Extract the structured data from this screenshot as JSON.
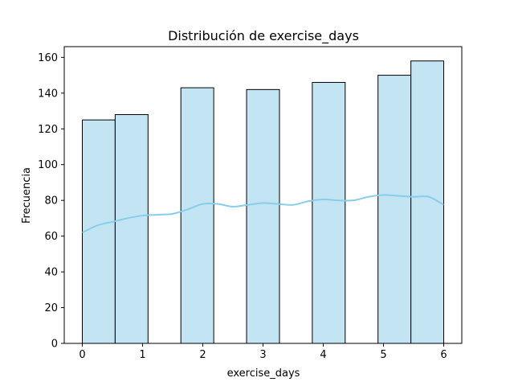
{
  "chart_data": {
    "type": "bar",
    "title": "Distribución de exercise_days",
    "xlabel": "exercise_days",
    "ylabel": "Frecuencia",
    "xlim": [
      -0.3,
      6.3
    ],
    "ylim": [
      0,
      166
    ],
    "xticks": [
      0,
      1,
      2,
      3,
      4,
      5,
      6
    ],
    "yticks": [
      0,
      20,
      40,
      60,
      80,
      100,
      120,
      140,
      160
    ],
    "grid": false,
    "bins": [
      {
        "x0": 0.0,
        "x1": 0.545,
        "value": 125
      },
      {
        "x0": 0.545,
        "x1": 1.091,
        "value": 128
      },
      {
        "x0": 1.091,
        "x1": 1.636,
        "value": 0
      },
      {
        "x0": 1.636,
        "x1": 2.182,
        "value": 143
      },
      {
        "x0": 2.182,
        "x1": 2.727,
        "value": 0
      },
      {
        "x0": 2.727,
        "x1": 3.273,
        "value": 142
      },
      {
        "x0": 3.273,
        "x1": 3.818,
        "value": 0
      },
      {
        "x0": 3.818,
        "x1": 4.364,
        "value": 146
      },
      {
        "x0": 4.364,
        "x1": 4.909,
        "value": 0
      },
      {
        "x0": 4.909,
        "x1": 5.455,
        "value": 150
      },
      {
        "x0": 5.455,
        "x1": 6.0,
        "value": 158
      }
    ],
    "kde": {
      "x": [
        0.0,
        0.25,
        0.5,
        0.75,
        1.0,
        1.25,
        1.5,
        1.75,
        2.0,
        2.25,
        2.5,
        2.75,
        3.0,
        3.25,
        3.5,
        3.75,
        4.0,
        4.25,
        4.5,
        4.75,
        5.0,
        5.25,
        5.5,
        5.75,
        6.0
      ],
      "y": [
        62,
        66,
        68,
        70,
        71.5,
        72,
        72.5,
        75,
        78,
        78,
        76.5,
        77.5,
        78.5,
        78,
        77.5,
        79.5,
        80.5,
        80,
        80,
        82,
        83,
        82.5,
        82,
        82,
        77.5
      ]
    },
    "colors": {
      "bar_fill": "#c3e5f3",
      "bar_edge": "#000000",
      "kde_line": "#87ceeb"
    }
  }
}
